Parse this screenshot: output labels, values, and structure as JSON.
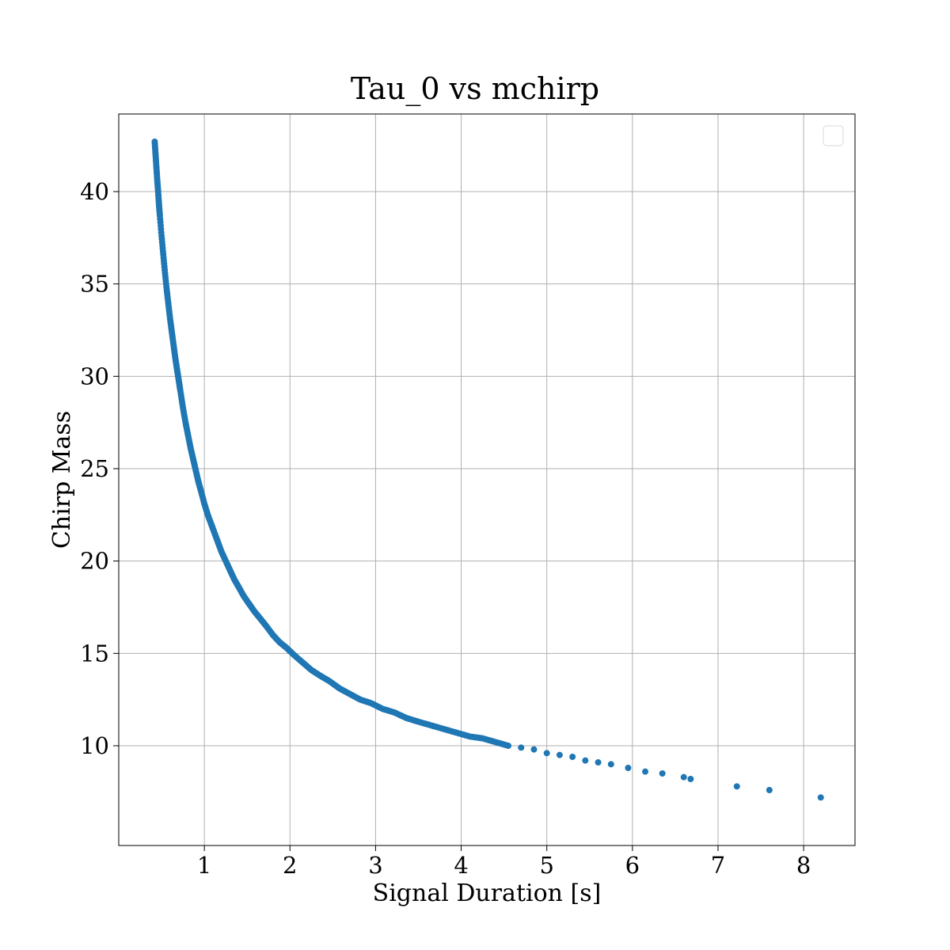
{
  "chart_data": {
    "type": "scatter",
    "title": "Tau_0 vs mchirp",
    "xlabel": "Signal Duration [s]",
    "ylabel": "Chirp Mass",
    "xlim": [
      0.0,
      8.6
    ],
    "ylim": [
      4.6,
      44.2
    ],
    "xticks": [
      1,
      2,
      3,
      4,
      5,
      6,
      7,
      8
    ],
    "yticks": [
      10,
      15,
      20,
      25,
      30,
      35,
      40
    ],
    "grid": true,
    "legend": "top-right (empty)",
    "marker_color": "#1f77b4",
    "series": [
      {
        "x": [
          0.42,
          0.43,
          0.44,
          0.45,
          0.46,
          0.47,
          0.48,
          0.5,
          0.52,
          0.54,
          0.56,
          0.58,
          0.6,
          0.62,
          0.64,
          0.66,
          0.68,
          0.7,
          0.72,
          0.75,
          0.78,
          0.81,
          0.84,
          0.87,
          0.9,
          0.93,
          0.96,
          1.0,
          1.04,
          1.08,
          1.12,
          1.16,
          1.2,
          1.25,
          1.3,
          1.35,
          1.4,
          1.46,
          1.52,
          1.58,
          1.65,
          1.72,
          1.8,
          1.88,
          1.96,
          2.05,
          2.15,
          2.25,
          2.35,
          2.46,
          2.58,
          2.7,
          2.82,
          2.95,
          3.08,
          3.22,
          3.36,
          3.5,
          3.65,
          3.8,
          3.95,
          4.1,
          4.25,
          4.4,
          4.55,
          4.7,
          4.85,
          5.0,
          5.15,
          5.3,
          5.45,
          5.6,
          5.75,
          5.95,
          6.15,
          6.35,
          6.6,
          6.68,
          7.22,
          7.6,
          8.2
        ],
        "y": [
          42.7,
          42.0,
          41.3,
          40.6,
          40.0,
          39.3,
          38.7,
          37.6,
          36.6,
          35.6,
          34.7,
          33.9,
          33.1,
          32.4,
          31.7,
          31.0,
          30.4,
          29.8,
          29.2,
          28.3,
          27.5,
          26.8,
          26.1,
          25.5,
          24.9,
          24.3,
          23.8,
          23.1,
          22.5,
          22.0,
          21.5,
          21.0,
          20.5,
          20.0,
          19.5,
          19.0,
          18.6,
          18.1,
          17.7,
          17.3,
          16.9,
          16.5,
          16.0,
          15.6,
          15.3,
          14.9,
          14.5,
          14.1,
          13.8,
          13.5,
          13.1,
          12.8,
          12.5,
          12.3,
          12.0,
          11.8,
          11.5,
          11.3,
          11.1,
          10.9,
          10.7,
          10.5,
          10.4,
          10.2,
          10.0,
          9.9,
          9.8,
          9.6,
          9.5,
          9.4,
          9.2,
          9.1,
          9.0,
          8.8,
          8.6,
          8.5,
          8.3,
          8.2,
          7.8,
          7.6,
          7.2
        ]
      }
    ]
  }
}
